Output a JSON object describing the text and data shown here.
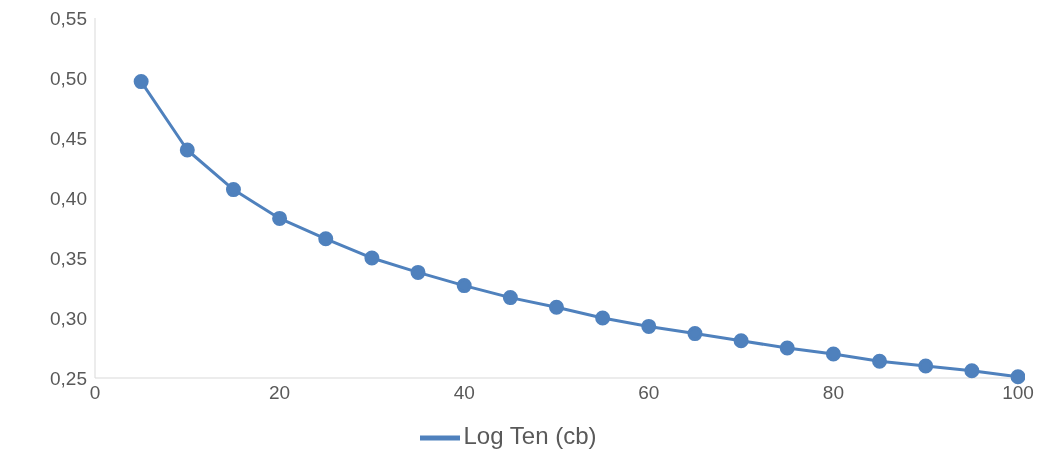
{
  "chart_data": {
    "type": "line",
    "x": [
      5,
      10,
      15,
      20,
      25,
      30,
      35,
      40,
      45,
      50,
      55,
      60,
      65,
      70,
      75,
      80,
      85,
      90,
      95,
      100
    ],
    "series": [
      {
        "name": "Log Ten (cb)",
        "color": "#4f81bd",
        "values": [
          0.497,
          0.44,
          0.407,
          0.383,
          0.366,
          0.35,
          0.338,
          0.327,
          0.317,
          0.309,
          0.3,
          0.293,
          0.287,
          0.281,
          0.275,
          0.27,
          0.264,
          0.26,
          0.256,
          0.251
        ]
      }
    ],
    "xlim": [
      0,
      100
    ],
    "xticks": [
      0,
      20,
      40,
      60,
      80,
      100
    ],
    "ylim": [
      0.25,
      0.55
    ],
    "yticks": [
      {
        "value": 0.25,
        "label": "0,25"
      },
      {
        "value": 0.3,
        "label": "0,30"
      },
      {
        "value": 0.35,
        "label": "0,35"
      },
      {
        "value": 0.4,
        "label": "0,40"
      },
      {
        "value": 0.45,
        "label": "0,45"
      },
      {
        "value": 0.5,
        "label": "0,50"
      },
      {
        "value": 0.55,
        "label": "0,55"
      }
    ],
    "grid": false,
    "legend": "bottom",
    "marker": "circle",
    "line_style": "solid"
  }
}
